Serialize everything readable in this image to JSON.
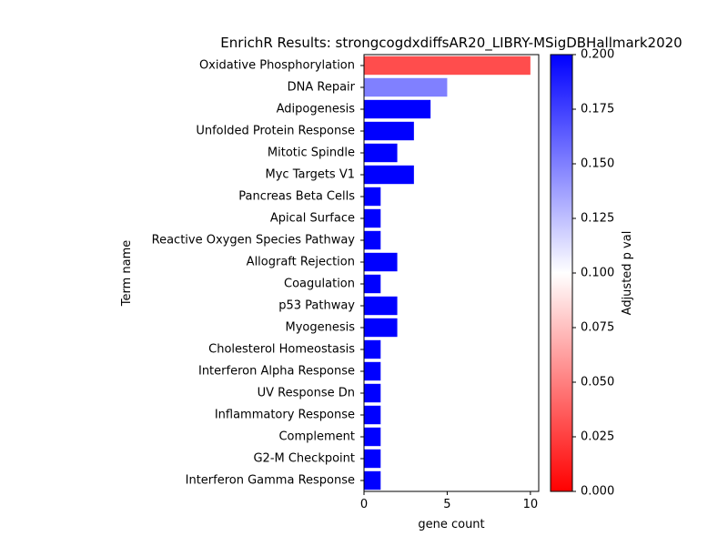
{
  "chart_data": {
    "type": "bar",
    "orientation": "horizontal",
    "title": "EnrichR Results: strongcogdxdiffsAR20_LIBRY-MSigDBHallmark2020",
    "xlabel": "gene count",
    "ylabel": "Term name",
    "xlim": [
      0,
      10.5
    ],
    "xticks": [
      0,
      5,
      10
    ],
    "categories": [
      "Oxidative Phosphorylation",
      "DNA Repair",
      "Adipogenesis",
      "Unfolded Protein Response",
      "Mitotic Spindle",
      "Myc Targets V1",
      "Pancreas Beta Cells",
      "Apical Surface",
      "Reactive Oxygen Species Pathway",
      "Allograft Rejection",
      "Coagulation",
      "p53 Pathway",
      "Myogenesis",
      "Cholesterol Homeostasis",
      "Interferon Alpha Response",
      "UV Response Dn",
      "Inflammatory Response",
      "Complement",
      "G2-M Checkpoint",
      "Interferon Gamma Response"
    ],
    "values": [
      10,
      5,
      4,
      3,
      2,
      3,
      1,
      1,
      1,
      2,
      1,
      2,
      2,
      1,
      1,
      1,
      1,
      1,
      1,
      1
    ],
    "adjusted_p_values": [
      0.03,
      0.15,
      0.2,
      0.2,
      0.2,
      0.2,
      0.2,
      0.2,
      0.2,
      0.2,
      0.2,
      0.2,
      0.2,
      0.2,
      0.2,
      0.2,
      0.2,
      0.2,
      0.2,
      0.2
    ],
    "colorbar": {
      "label": "Adjusted p val",
      "range": [
        0,
        0.2
      ],
      "ticks": [
        "0.000",
        "0.025",
        "0.050",
        "0.075",
        "0.100",
        "0.125",
        "0.150",
        "0.175",
        "0.200"
      ],
      "colors": [
        "#ff0000",
        "#ffffff",
        "#0000ff"
      ]
    },
    "grid": false,
    "legend": "none"
  }
}
